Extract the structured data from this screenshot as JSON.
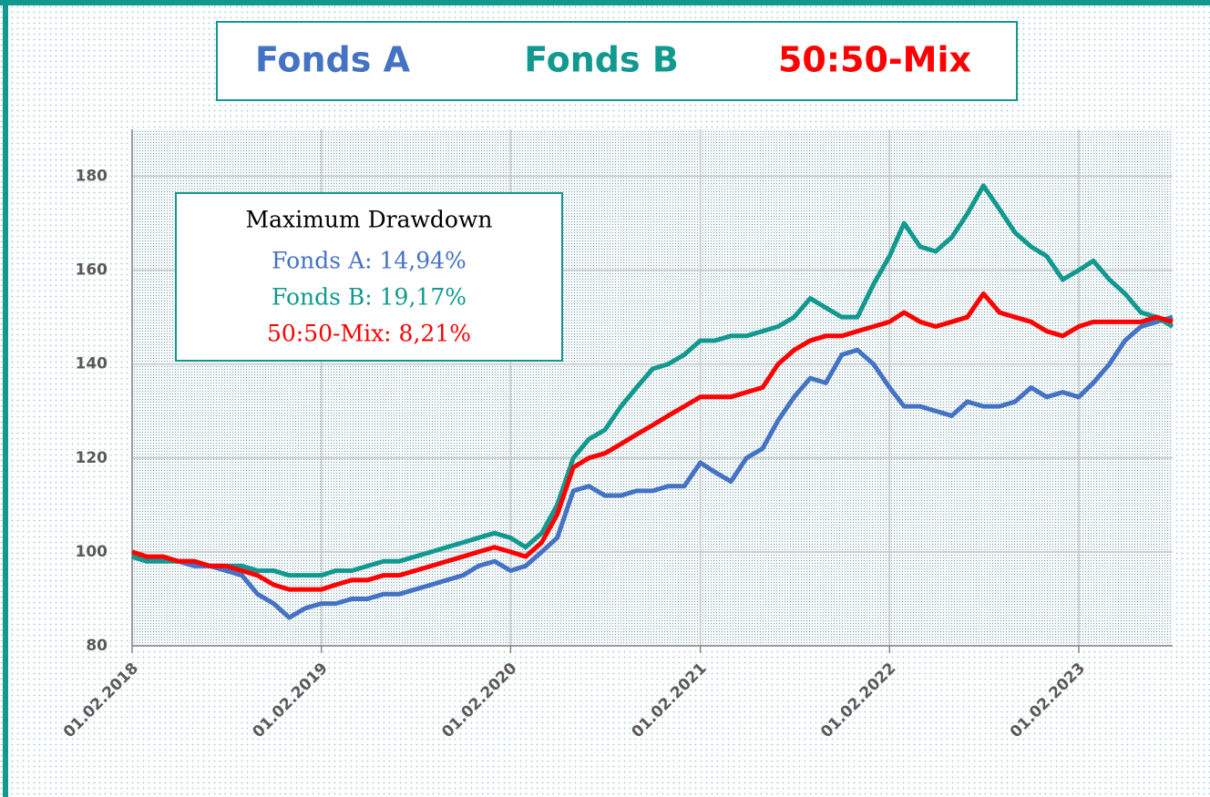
{
  "chart_data": {
    "type": "line",
    "x": [
      "01.02.2018",
      "01.03.2018",
      "01.04.2018",
      "01.05.2018",
      "01.06.2018",
      "01.07.2018",
      "01.08.2018",
      "01.09.2018",
      "01.10.2018",
      "01.11.2018",
      "01.12.2018",
      "01.01.2019",
      "01.02.2019",
      "01.03.2019",
      "01.04.2019",
      "01.05.2019",
      "01.06.2019",
      "01.07.2019",
      "01.08.2019",
      "01.09.2019",
      "01.10.2019",
      "01.11.2019",
      "01.12.2019",
      "01.01.2020",
      "01.02.2020",
      "01.03.2020",
      "01.04.2020",
      "01.05.2020",
      "01.06.2020",
      "01.07.2020",
      "01.08.2020",
      "01.09.2020",
      "01.10.2020",
      "01.11.2020",
      "01.12.2020",
      "01.01.2021",
      "01.02.2021",
      "01.03.2021",
      "01.04.2021",
      "01.05.2021",
      "01.06.2021",
      "01.07.2021",
      "01.08.2021",
      "01.09.2021",
      "01.10.2021",
      "01.11.2021",
      "01.12.2021",
      "01.01.2022",
      "01.02.2022",
      "01.03.2022",
      "01.04.2022",
      "01.05.2022",
      "01.06.2022",
      "01.07.2022",
      "01.08.2022",
      "01.09.2022",
      "01.10.2022",
      "01.11.2022",
      "01.12.2022",
      "01.01.2023",
      "01.02.2023",
      "01.03.2023",
      "01.04.2023",
      "01.05.2023",
      "01.06.2023",
      "01.07.2023",
      "01.08.2023"
    ],
    "series": [
      {
        "name": "Fonds A",
        "color": "#4472c4",
        "values": [
          99,
          98,
          99,
          98,
          97,
          97,
          96,
          95,
          91,
          89,
          86,
          88,
          89,
          89,
          90,
          90,
          91,
          91,
          92,
          93,
          94,
          95,
          97,
          98,
          96,
          97,
          100,
          103,
          113,
          114,
          112,
          112,
          113,
          113,
          114,
          114,
          119,
          117,
          115,
          120,
          122,
          128,
          133,
          137,
          136,
          142,
          143,
          140,
          135,
          131,
          131,
          130,
          129,
          132,
          131,
          131,
          132,
          135,
          133,
          134,
          133,
          136,
          140,
          145,
          148,
          149,
          150
        ]
      },
      {
        "name": "Fonds B",
        "color": "#119990",
        "values": [
          99,
          98,
          98,
          98,
          98,
          97,
          97,
          97,
          96,
          96,
          95,
          95,
          95,
          96,
          96,
          97,
          98,
          98,
          99,
          100,
          101,
          102,
          103,
          104,
          103,
          101,
          104,
          110,
          120,
          124,
          126,
          131,
          135,
          139,
          140,
          142,
          145,
          145,
          146,
          146,
          147,
          148,
          150,
          154,
          152,
          150,
          150,
          157,
          163,
          170,
          165,
          164,
          167,
          172,
          178,
          173,
          168,
          165,
          163,
          158,
          160,
          162,
          158,
          155,
          151,
          150,
          148
        ]
      },
      {
        "name": "50:50-Mix",
        "color": "#ff0000",
        "values": [
          100,
          99,
          99,
          98,
          98,
          97,
          97,
          96,
          95,
          93,
          92,
          92,
          92,
          93,
          94,
          94,
          95,
          95,
          96,
          97,
          98,
          99,
          100,
          101,
          100,
          99,
          102,
          108,
          118,
          120,
          121,
          123,
          125,
          127,
          129,
          131,
          133,
          133,
          133,
          134,
          135,
          140,
          143,
          145,
          146,
          146,
          147,
          148,
          149,
          151,
          149,
          148,
          149,
          150,
          155,
          151,
          150,
          149,
          147,
          146,
          148,
          149,
          149,
          149,
          149,
          150,
          149
        ]
      }
    ],
    "xlim": [
      "01.02.2018",
      "01.08.2023"
    ],
    "xticks": [
      "01.02.2018",
      "01.02.2019",
      "01.02.2020",
      "01.02.2021",
      "01.02.2022",
      "01.02.2023"
    ],
    "ylim": [
      80,
      190
    ],
    "yticks": [
      80,
      100,
      120,
      140,
      160,
      180
    ],
    "grid": true,
    "annotation": {
      "title": "Maximum Drawdown",
      "lines": [
        "Fonds A: 14,94%",
        "Fonds B: 19,17%",
        "50:50-Mix: 8,21%"
      ]
    }
  }
}
